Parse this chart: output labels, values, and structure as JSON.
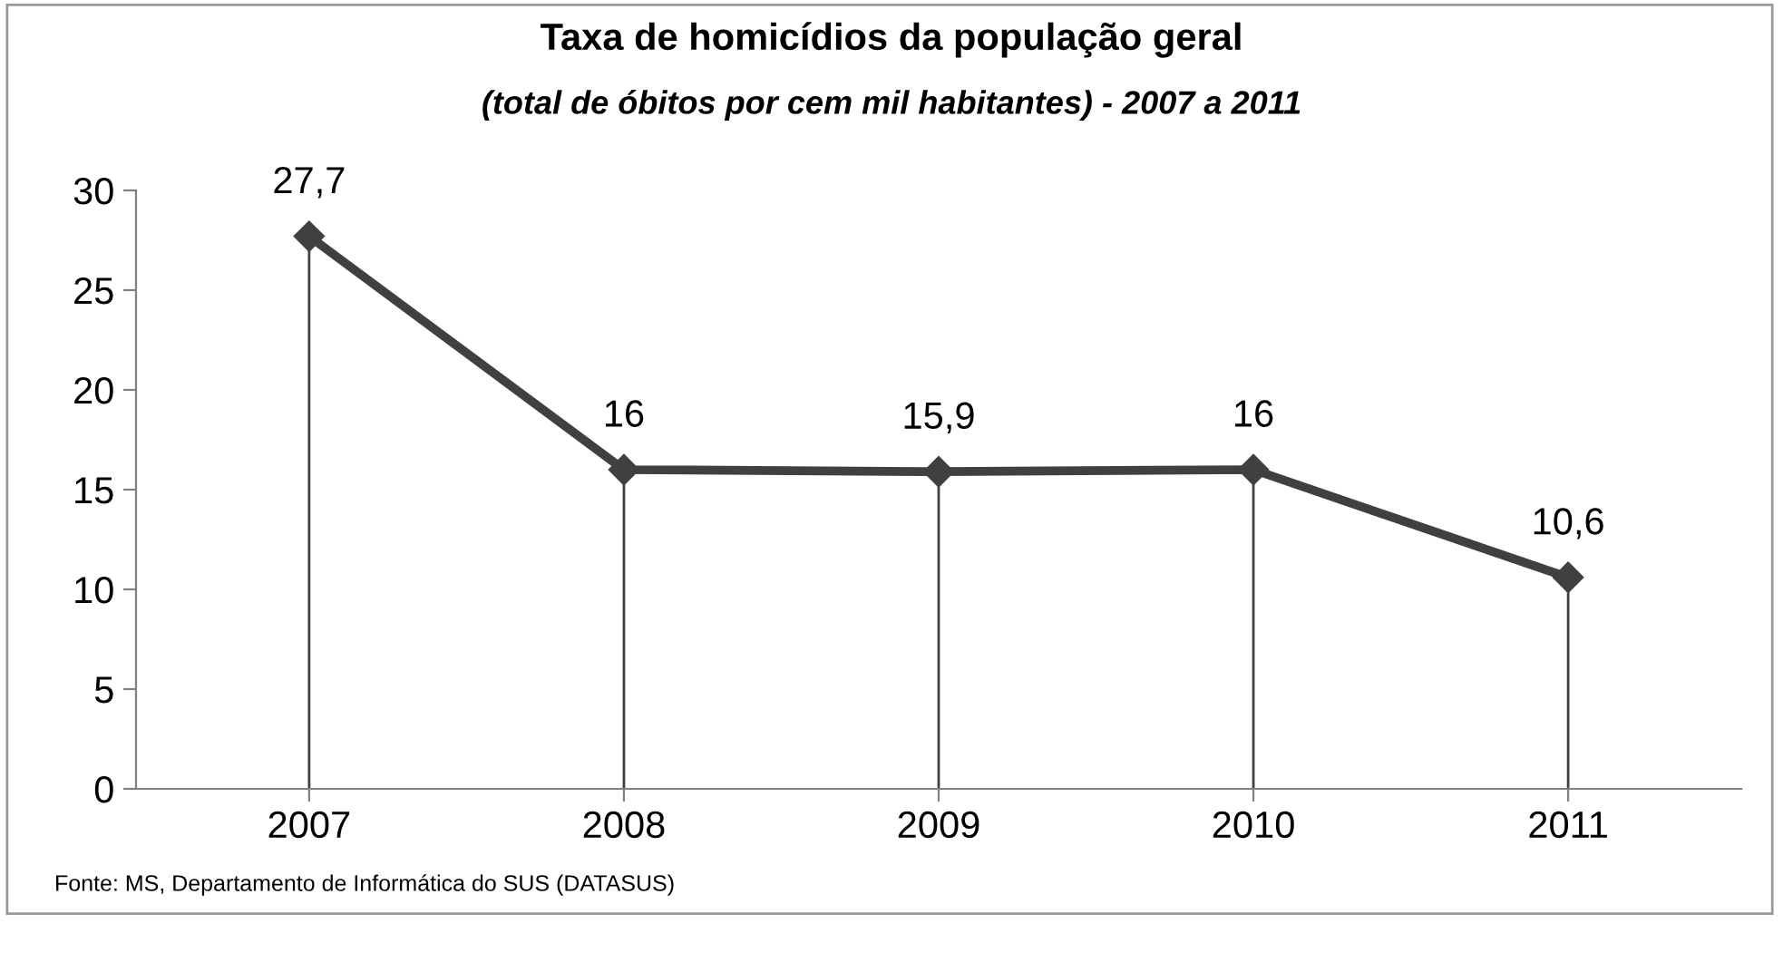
{
  "chart_data": {
    "type": "line",
    "title": "Taxa de homicídios da população geral",
    "subtitle": "(total de óbitos por cem mil habitantes) - 2007 a 2011",
    "categories": [
      "2007",
      "2008",
      "2009",
      "2010",
      "2011"
    ],
    "series": [
      {
        "color": "#404040",
        "values": [
          27.7,
          16,
          15.9,
          16,
          10.6
        ],
        "value_labels": [
          "27,7",
          "16",
          "15,9",
          "16",
          "10,6"
        ]
      }
    ],
    "ylim": [
      0,
      30
    ],
    "yticks": [
      0,
      5,
      10,
      15,
      20,
      25,
      30
    ],
    "grid": "x",
    "legend": false,
    "marker": "diamond",
    "line_style": "solid",
    "annotations": [
      "Fonte: MS, Departamento de Informática do SUS (DATASUS)"
    ]
  }
}
